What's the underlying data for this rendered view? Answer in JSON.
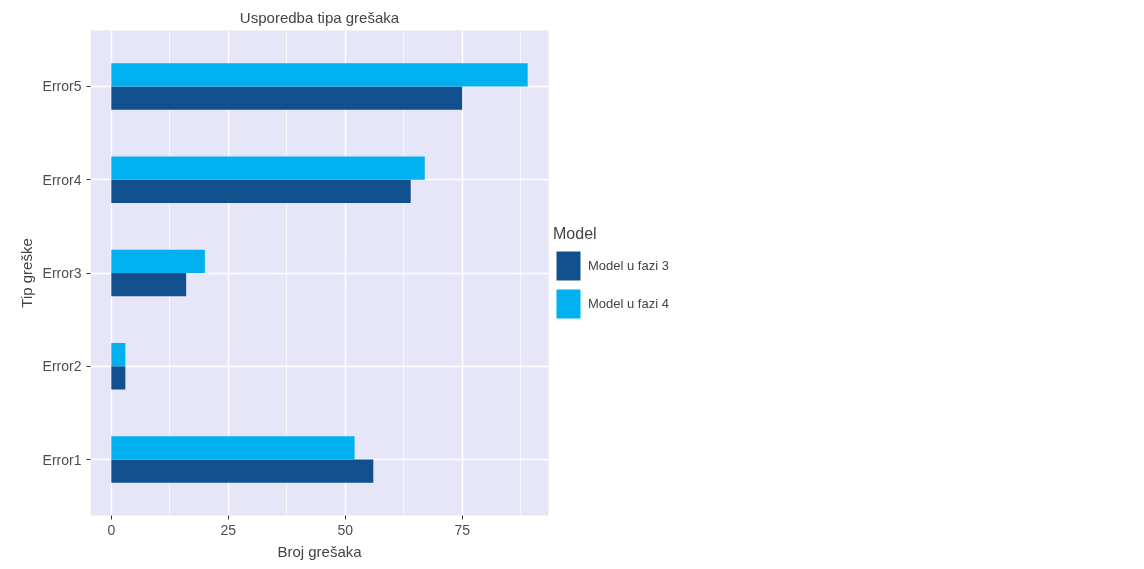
{
  "chart_data": {
    "type": "bar",
    "orientation": "horizontal",
    "title": "Usporedba tipa grešaka",
    "xlabel": "Broj grešaka",
    "ylabel": "Tip greške",
    "legend_title": "Model",
    "categories": [
      "Error5",
      "Error4",
      "Error3",
      "Error2",
      "Error1"
    ],
    "series": [
      {
        "name": "Model u fazi 3",
        "color": "#11508c",
        "values": [
          75,
          64,
          16,
          3,
          56
        ]
      },
      {
        "name": "Model u fazi 4",
        "color": "#00b0ef",
        "values": [
          89,
          67,
          20,
          3,
          52
        ]
      }
    ],
    "xlim": [
      -4.45,
      93.45
    ],
    "xticks": [
      0,
      25,
      50,
      75
    ],
    "grid": true,
    "legend": "right"
  }
}
